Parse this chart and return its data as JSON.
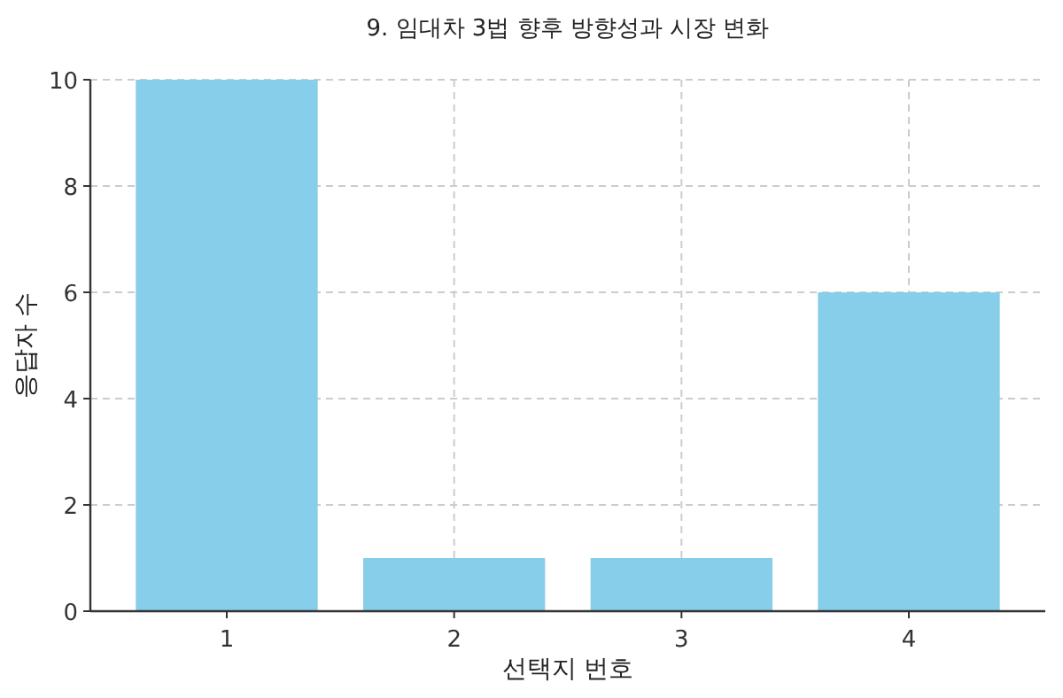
{
  "chart_data": {
    "type": "bar",
    "title": "9. 임대차 3법 향후 방향성과 시장 변화",
    "xlabel": "선택지 번호",
    "ylabel": "응답자 수",
    "categories": [
      "1",
      "2",
      "3",
      "4"
    ],
    "values": [
      10,
      1,
      1,
      6
    ],
    "color": "#87ceeb",
    "ylim": [
      0,
      10
    ],
    "yticks": [
      0,
      2,
      4,
      6,
      8,
      10
    ],
    "grid": true
  }
}
